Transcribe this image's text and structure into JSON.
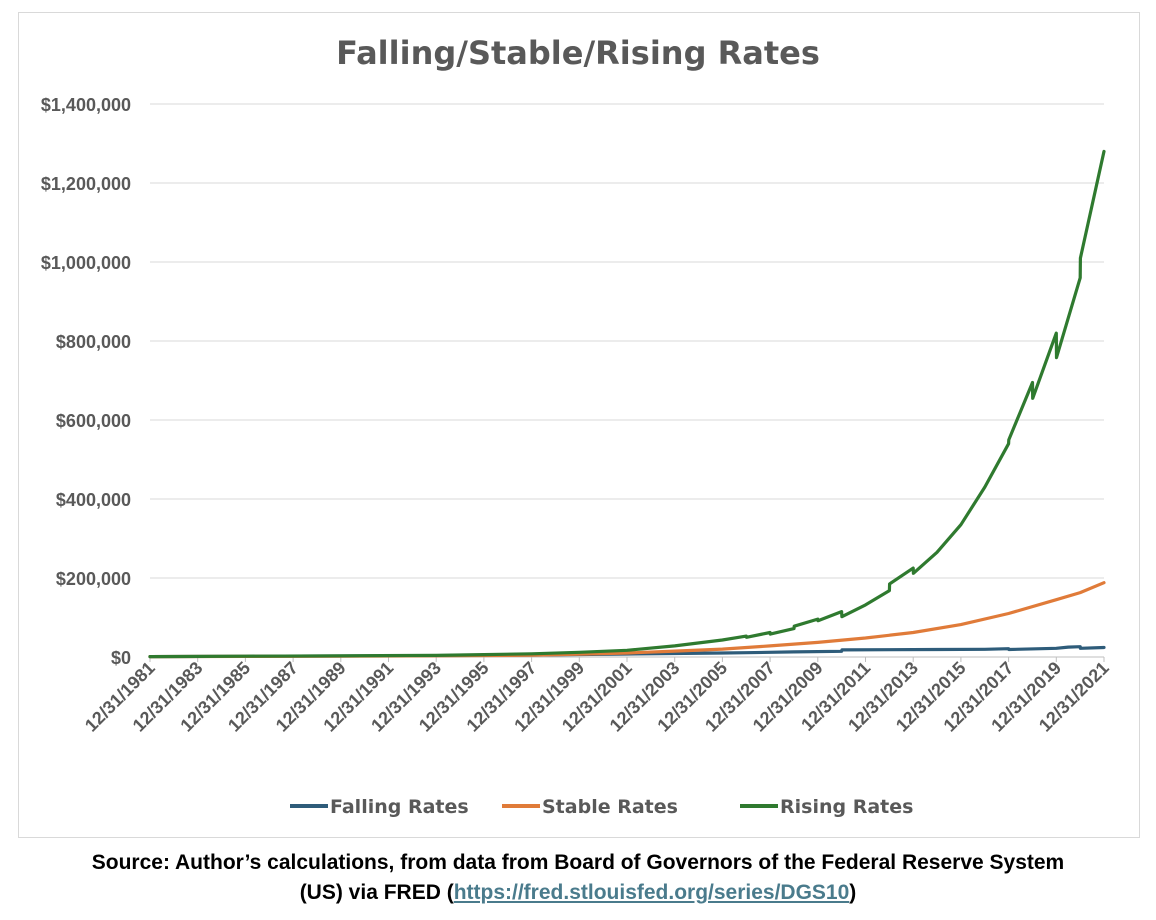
{
  "chart_data": {
    "type": "line",
    "title": "Falling/Stable/Rising Rates",
    "xlabel": "",
    "ylabel": "",
    "ylim": [
      0,
      1400000
    ],
    "yticks": [
      0,
      200000,
      400000,
      600000,
      800000,
      1000000,
      1200000,
      1400000
    ],
    "ytick_labels": [
      "$0",
      "$200,000",
      "$400,000",
      "$600,000",
      "$800,000",
      "$1,000,000",
      "$1,200,000",
      "$1,400,000"
    ],
    "xlim": [
      1981,
      2021
    ],
    "xticks": [
      1981,
      1983,
      1985,
      1987,
      1989,
      1991,
      1993,
      1995,
      1997,
      1999,
      2001,
      2003,
      2005,
      2007,
      2009,
      2011,
      2013,
      2015,
      2017,
      2019,
      2021
    ],
    "xtick_labels": [
      "12/31/1981",
      "12/31/1983",
      "12/31/1985",
      "12/31/1987",
      "12/31/1989",
      "12/31/1991",
      "12/31/1993",
      "12/31/1995",
      "12/31/1997",
      "12/31/1999",
      "12/31/2001",
      "12/31/2003",
      "12/31/2005",
      "12/31/2007",
      "12/31/2009",
      "12/31/2011",
      "12/31/2013",
      "12/31/2015",
      "12/31/2017",
      "12/31/2019",
      "12/31/2021"
    ],
    "grid": true,
    "legend_position": "bottom",
    "series": [
      {
        "name": "Falling Rates",
        "color": "#2e5c7a",
        "x": [
          1981,
          1985,
          1989,
          1993,
          1997,
          2001,
          2005,
          2006,
          2008,
          2010,
          2010.01,
          2012,
          2014,
          2016,
          2017,
          2017.01,
          2019,
          2019.5,
          2020,
          2020.01,
          2021
        ],
        "values": [
          1000,
          1800,
          2500,
          3500,
          5000,
          7500,
          10000,
          11000,
          13000,
          14500,
          18000,
          18500,
          19000,
          19500,
          21000,
          19000,
          22000,
          25000,
          26000,
          22000,
          24000
        ]
      },
      {
        "name": "Stable Rates",
        "color": "#e07b39",
        "x": [
          1981,
          1985,
          1989,
          1993,
          1997,
          1999,
          2001,
          2003,
          2005,
          2007,
          2009,
          2011,
          2013,
          2015,
          2017,
          2019,
          2020,
          2021
        ],
        "values": [
          1000,
          1400,
          2000,
          3000,
          4500,
          7000,
          10000,
          15000,
          20000,
          28000,
          37000,
          48000,
          62000,
          82000,
          110000,
          145000,
          163000,
          188000
        ]
      },
      {
        "name": "Rising Rates",
        "color": "#2f7a2f",
        "x": [
          1981,
          1985,
          1989,
          1993,
          1995,
          1997,
          1999,
          2001,
          2003,
          2005,
          2006,
          2006.01,
          2007,
          2007.01,
          2008,
          2008.01,
          2009,
          2009.01,
          2010,
          2010.01,
          2011,
          2012,
          2012.01,
          2013,
          2013.01,
          2014,
          2015,
          2016,
          2017,
          2017.01,
          2018,
          2018.01,
          2019,
          2019.01,
          2020,
          2020.01,
          2021
        ],
        "values": [
          1000,
          2000,
          3000,
          4000,
          6000,
          8000,
          12000,
          17000,
          28000,
          43000,
          53000,
          50000,
          62000,
          58000,
          72000,
          78000,
          96000,
          92000,
          115000,
          102000,
          132000,
          168000,
          185000,
          225000,
          212000,
          265000,
          335000,
          430000,
          540000,
          550000,
          695000,
          655000,
          820000,
          758000,
          960000,
          1010000,
          1280000
        ]
      }
    ]
  },
  "caption": {
    "line1": "Source: Author’s calculations, from data from Board of Governors of the Federal Reserve System",
    "line2_prefix": "(US) via FRED (",
    "link": "https://fred.stlouisfed.org/series/DGS10",
    "line2_suffix": ")"
  }
}
